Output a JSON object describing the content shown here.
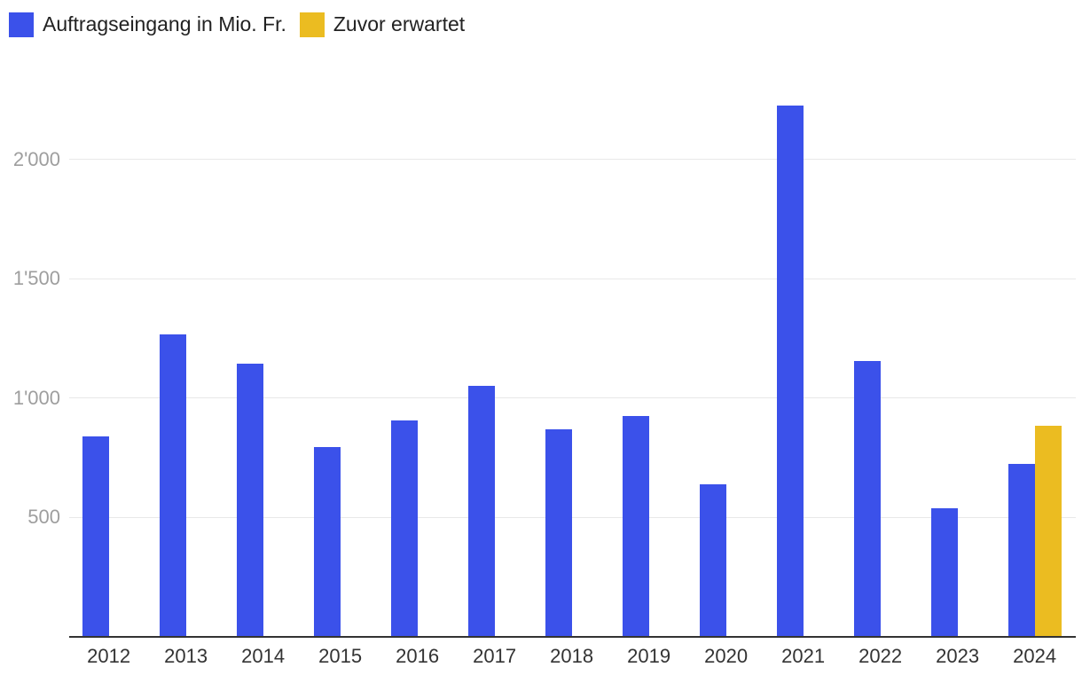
{
  "legend": {
    "items": [
      {
        "id": "order-intake",
        "label": "Auftragseingang in Mio. Fr.",
        "color": "#3B51EA"
      },
      {
        "id": "expected",
        "label": "Zuvor erwartet",
        "color": "#EBBC21"
      }
    ]
  },
  "chart_data": {
    "type": "bar",
    "title": "",
    "xlabel": "",
    "ylabel": "",
    "categories": [
      "2012",
      "2013",
      "2014",
      "2015",
      "2016",
      "2017",
      "2018",
      "2019",
      "2020",
      "2021",
      "2022",
      "2023",
      "2024"
    ],
    "series": [
      {
        "name": "Auftragseingang in Mio. Fr.",
        "color": "#3B51EA",
        "values": [
          840,
          1265,
          1145,
          795,
          905,
          1050,
          870,
          925,
          640,
          2225,
          1155,
          540,
          725
        ]
      },
      {
        "name": "Zuvor erwartet",
        "color": "#EBBC21",
        "values": [
          null,
          null,
          null,
          null,
          null,
          null,
          null,
          null,
          null,
          null,
          null,
          null,
          885
        ]
      }
    ],
    "yticks": [
      {
        "value": 500,
        "label": "500"
      },
      {
        "value": 1000,
        "label": "1'000"
      },
      {
        "value": 1500,
        "label": "1'500"
      },
      {
        "value": 2000,
        "label": "2'000"
      }
    ],
    "ylim": [
      0,
      2400
    ],
    "grid": true,
    "legend_position": "top-left"
  },
  "colors": {
    "background": "#ffffff",
    "axis_line": "#333333",
    "grid_line": "#e8e8e8",
    "ytick_text": "#9e9e9e",
    "xtick_text": "#333333",
    "legend_text": "#222222"
  }
}
